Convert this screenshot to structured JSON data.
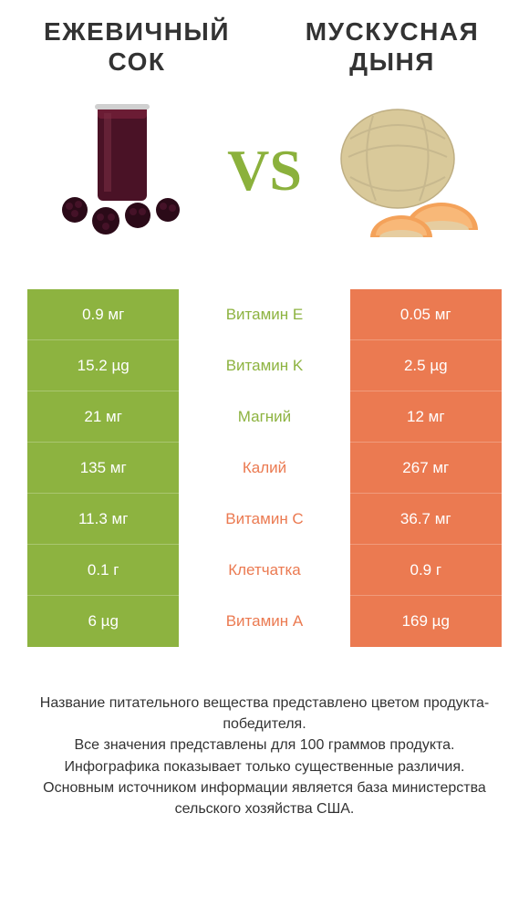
{
  "left": {
    "title_l1": "ЕЖЕВИЧНЫЙ",
    "title_l2": "СОК",
    "color": "#8db340"
  },
  "right": {
    "title_l1": "МУСКУСНАЯ",
    "title_l2": "ДЫНЯ",
    "color": "#eb7a51"
  },
  "vs": "VS",
  "comparison": {
    "left_color": "#8db340",
    "right_color": "#eb7a51",
    "rows": [
      {
        "left": "0.9 мг",
        "label": "Витамин E",
        "right": "0.05 мг",
        "winner": "left"
      },
      {
        "left": "15.2 µg",
        "label": "Витамин K",
        "right": "2.5 µg",
        "winner": "left"
      },
      {
        "left": "21 мг",
        "label": "Магний",
        "right": "12 мг",
        "winner": "left"
      },
      {
        "left": "135 мг",
        "label": "Калий",
        "right": "267 мг",
        "winner": "right"
      },
      {
        "left": "11.3 мг",
        "label": "Витамин C",
        "right": "36.7 мг",
        "winner": "right"
      },
      {
        "left": "0.1 г",
        "label": "Клетчатка",
        "right": "0.9 г",
        "winner": "right"
      },
      {
        "left": "6 µg",
        "label": "Витамин A",
        "right": "169 µg",
        "winner": "right"
      }
    ]
  },
  "footer": {
    "l1": "Название питательного вещества представлено цветом продукта-победителя.",
    "l2": "Все значения представлены для 100 граммов продукта.",
    "l3": "Инфографика показывает только существенные различия.",
    "l4": "Основным источником информации является база министерства сельского хозяйства США."
  }
}
